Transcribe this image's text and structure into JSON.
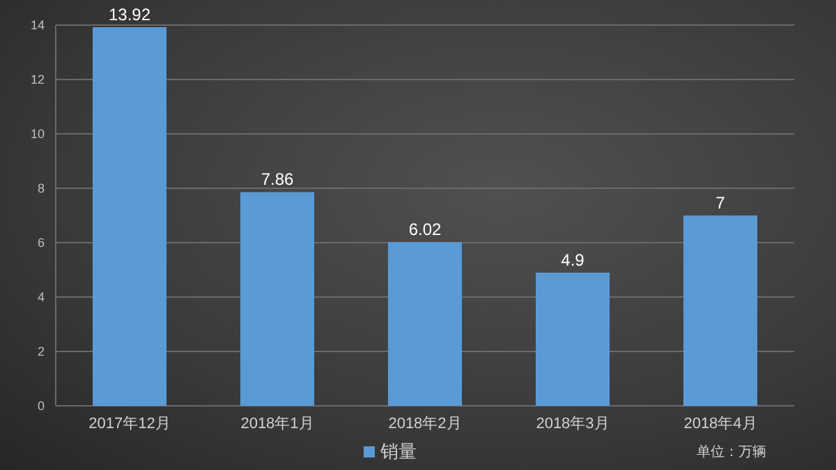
{
  "chart_data": {
    "type": "bar",
    "categories": [
      "2017年12月",
      "2018年1月",
      "2018年2月",
      "2018年3月",
      "2018年4月"
    ],
    "series": [
      {
        "name": "销量",
        "color": "#5b9bd5",
        "values": [
          13.92,
          7.86,
          6.02,
          4.9,
          7
        ]
      }
    ],
    "ylim": [
      0,
      14
    ],
    "yticks": [
      0,
      2,
      4,
      6,
      8,
      10,
      12,
      14
    ],
    "grid": "y",
    "legend": "bottom",
    "data_labels": true,
    "annotations": [
      "单位：万辆"
    ]
  }
}
